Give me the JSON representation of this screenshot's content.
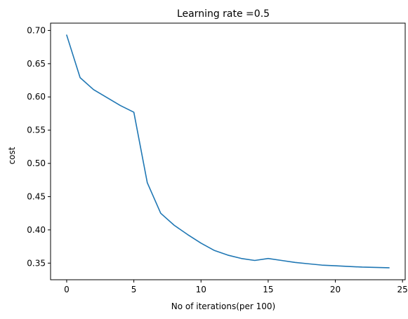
{
  "chart_data": {
    "type": "line",
    "title": "Learning rate =0.5",
    "xlabel": "No of iterations(per 100)",
    "ylabel": "cost",
    "xlim": [
      -1.2,
      25.2
    ],
    "ylim": [
      0.325,
      0.711
    ],
    "xticks": [
      0,
      5,
      10,
      15,
      20,
      25
    ],
    "xtick_labels": [
      "0",
      "5",
      "10",
      "15",
      "20",
      "25"
    ],
    "yticks": [
      0.35,
      0.4,
      0.45,
      0.5,
      0.55,
      0.6,
      0.65,
      0.7
    ],
    "ytick_labels": [
      "0.35",
      "0.40",
      "0.45",
      "0.50",
      "0.55",
      "0.60",
      "0.65",
      "0.70"
    ],
    "grid": false,
    "series": [
      {
        "color": "#1f77b4",
        "x": [
          0,
          1,
          2,
          3,
          4,
          5,
          6,
          7,
          8,
          9,
          10,
          11,
          12,
          13,
          14,
          15,
          16,
          17,
          18,
          19,
          20,
          21,
          22,
          23,
          24
        ],
        "values": [
          0.693,
          0.629,
          0.611,
          0.599,
          0.587,
          0.577,
          0.471,
          0.425,
          0.407,
          0.393,
          0.38,
          0.369,
          0.362,
          0.357,
          0.354,
          0.357,
          0.354,
          0.351,
          0.349,
          0.347,
          0.346,
          0.345,
          0.344,
          0.3435,
          0.343
        ]
      }
    ]
  }
}
